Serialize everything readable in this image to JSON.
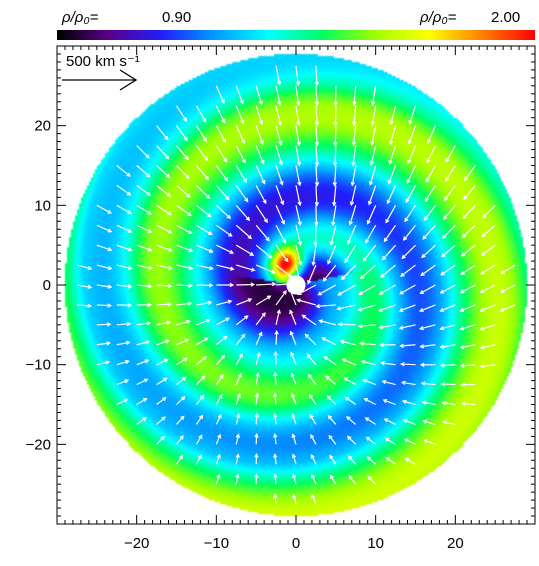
{
  "chart_data": {
    "type": "heatmap",
    "title": "",
    "xlabel": "",
    "ylabel": "",
    "xlim": [
      -30,
      30
    ],
    "ylim": [
      -30,
      30
    ],
    "x_ticks": [
      -20,
      -10,
      0,
      10,
      20
    ],
    "y_ticks": [
      -20,
      -10,
      0,
      10,
      20
    ],
    "x_tick_labels": [
      "−20",
      "−10",
      "0",
      "10",
      "20"
    ],
    "y_tick_labels": [
      "−20",
      "−10",
      "0",
      "10",
      "20"
    ],
    "grid": false,
    "domain_radius": 29,
    "colorbar": {
      "min_label": "ρ/ρ₀=",
      "min_value": "0.90",
      "max_label": "ρ/ρ₀=",
      "max_value": "2.00",
      "vmin": 0.9,
      "vmax": 2.0,
      "stops": [
        "#000000",
        "#5a008c",
        "#2020ff",
        "#00a0ff",
        "#00ffff",
        "#00ff60",
        "#a0ff00",
        "#ffff00",
        "#ff8000",
        "#ff0000"
      ]
    },
    "field": {
      "background_density": 1.0,
      "spiral_arms": [
        {
          "start_angle_deg": 150,
          "start_radius": 2.5,
          "radial_growth_per_turn": 17,
          "peak_density": 1.55
        },
        {
          "start_angle_deg": -30,
          "start_radius": 5,
          "radial_growth_per_turn": 17,
          "peak_density": 1.35
        }
      ],
      "inner_peak": {
        "x": -1,
        "y": 2.5,
        "density": 2.0
      },
      "central_star": {
        "x": 0,
        "y": 0,
        "radius": 1.2,
        "color": "#ffffff"
      }
    },
    "velocity_field": {
      "grid_spacing": 2.5,
      "arrow_color": "#ffffff",
      "reference_arrow": {
        "value_label": "500 km s⁻¹",
        "speed_km_s": 500
      }
    }
  }
}
